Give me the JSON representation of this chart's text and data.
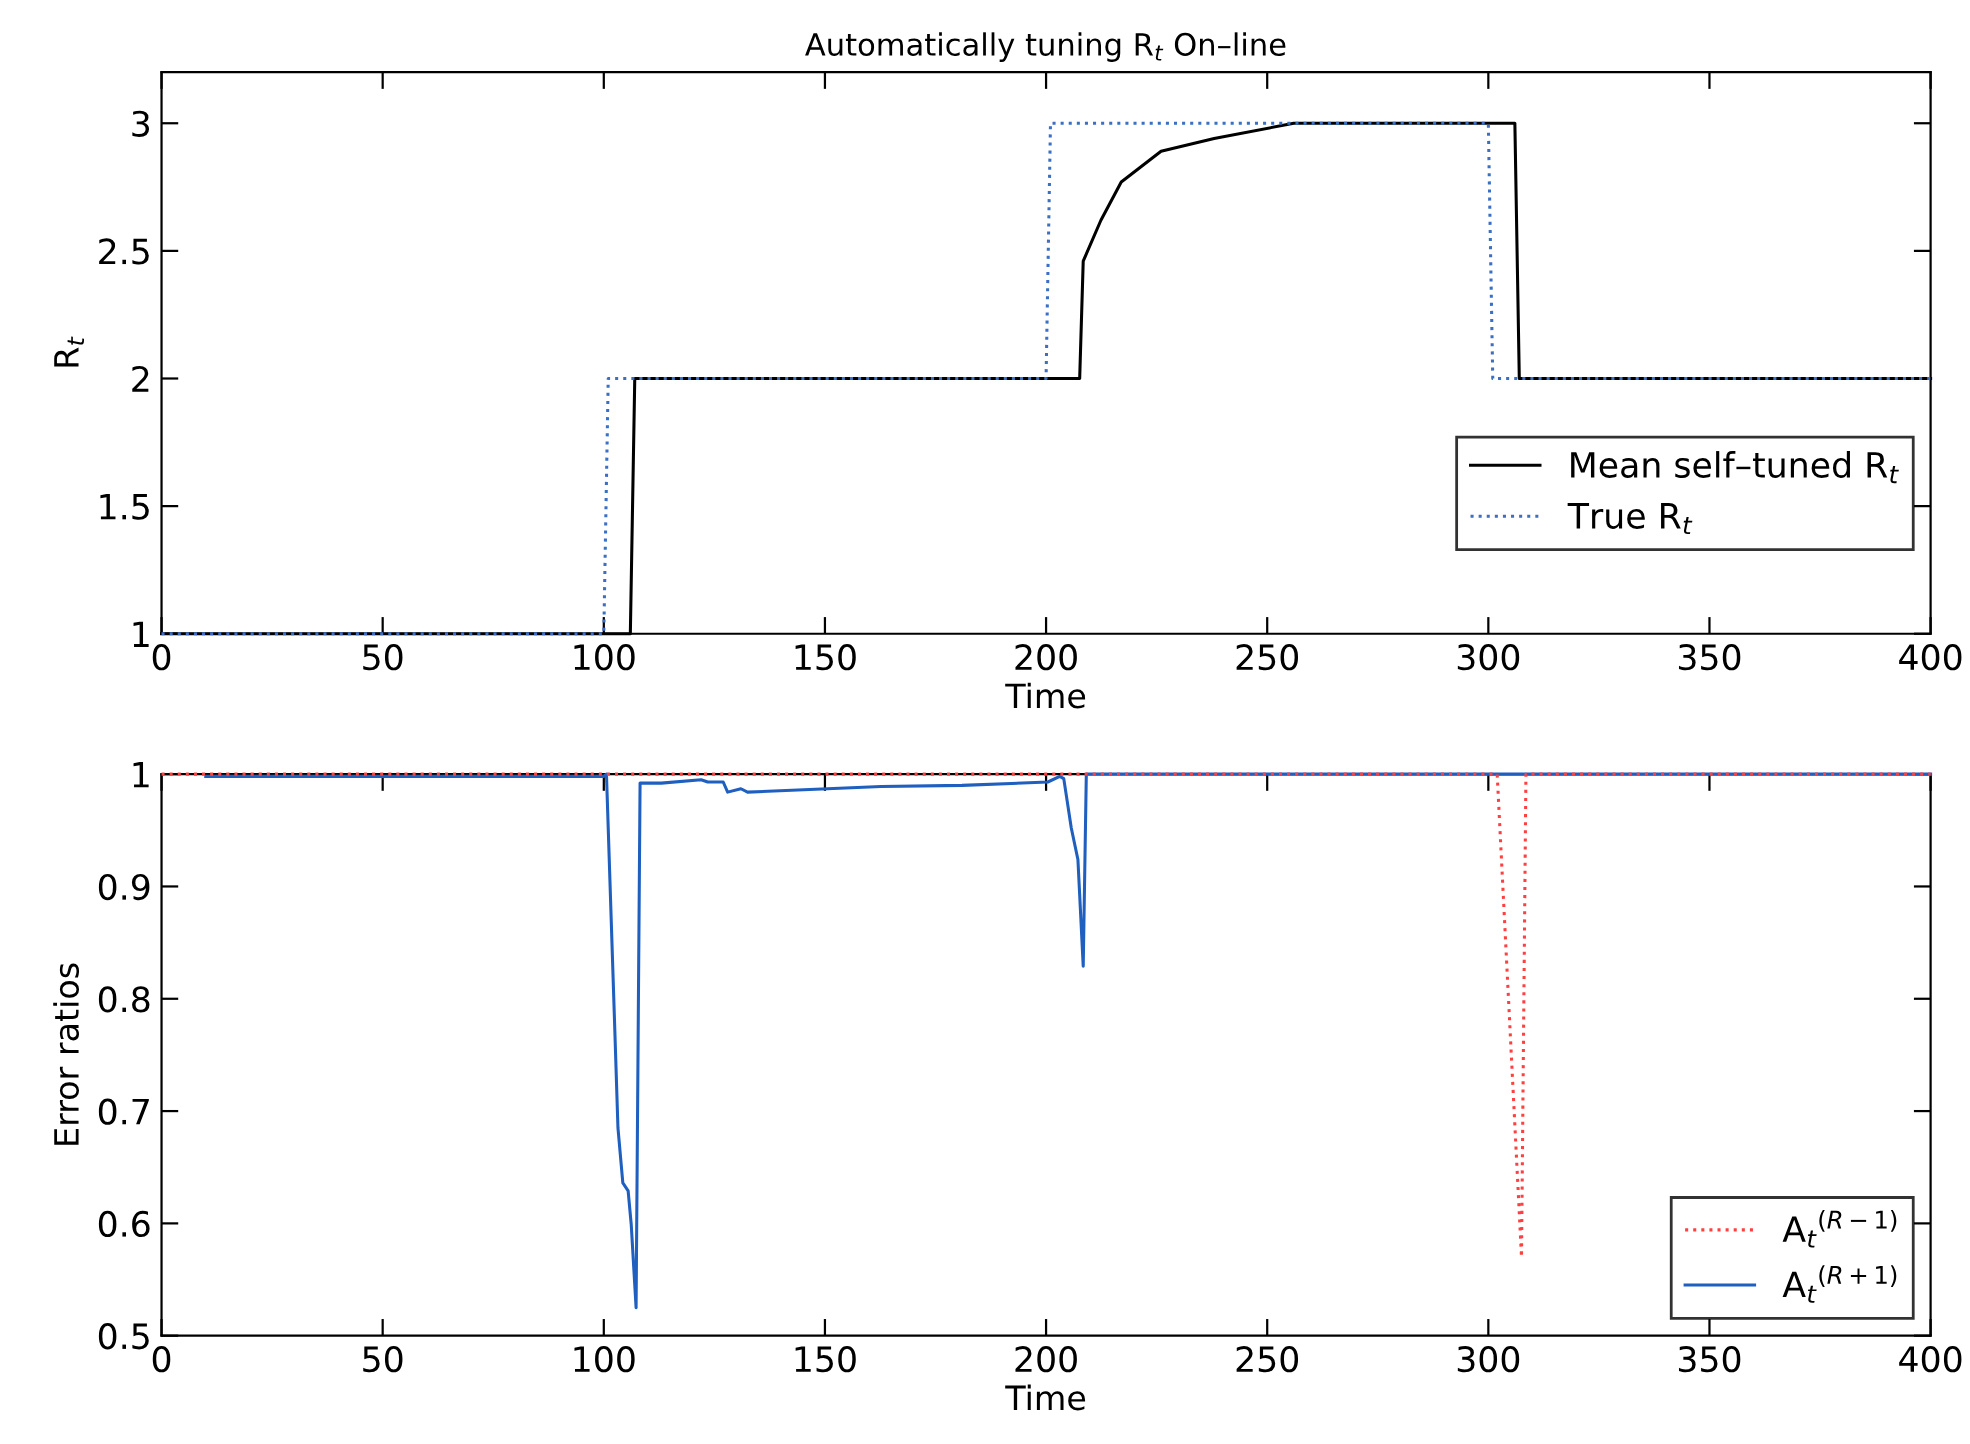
{
  "chart_data": [
    {
      "type": "line",
      "title": "Automatically tuning R$_{t}$ On–line",
      "xlabel": "Time",
      "ylabel": "R$_{t}$",
      "xlim": [
        0,
        400
      ],
      "ylim": [
        1,
        3.2
      ],
      "xticks": [
        0,
        50,
        100,
        150,
        200,
        250,
        300,
        350,
        400
      ],
      "yticks": [
        1,
        1.5,
        2,
        2.5,
        3
      ],
      "grid": false,
      "legend": "right",
      "series": [
        {
          "name": "Mean self–tuned R$_{t}$",
          "color": "#000000",
          "line_style": "solid",
          "x": [
            0,
            106,
            107,
            207.6,
            208.4,
            212.4,
            217,
            226,
            238,
            256,
            306,
            307,
            400
          ],
          "values": [
            1,
            1,
            2,
            2,
            2.46,
            2.62,
            2.77,
            2.89,
            2.94,
            3,
            3,
            2,
            2
          ]
        },
        {
          "name": "True R$_{t}$",
          "color": "#3a6fc4",
          "line_style": "dotted",
          "x": [
            0,
            100,
            101,
            200,
            201,
            300,
            301,
            400
          ],
          "values": [
            1,
            1,
            2,
            2,
            3,
            3,
            2,
            2
          ]
        }
      ]
    },
    {
      "type": "line",
      "xlabel": "Time",
      "ylabel": "Error ratios",
      "xlim": [
        0,
        400
      ],
      "ylim": [
        0.5,
        1
      ],
      "xticks": [
        0,
        50,
        100,
        150,
        200,
        250,
        300,
        350,
        400
      ],
      "yticks": [
        0.5,
        0.6,
        0.7,
        0.8,
        0.9,
        1
      ],
      "grid": false,
      "legend": "lower right",
      "series": [
        {
          "name": "A$_{t}$$^{(R−1)}$",
          "color": "#ff4040",
          "line_style": "dotted",
          "x": [
            0,
            302,
            307.5,
            308.5,
            400
          ],
          "values": [
            1,
            1,
            0.57,
            1,
            1
          ]
        },
        {
          "name": "A$_{t}$$^{(R+1)}$",
          "color": "#1f5fbf",
          "line_style": "solid",
          "x": [
            10,
            100,
            100.6,
            102.4,
            103.2,
            104.3,
            105.5,
            106.2,
            107.3,
            108.2,
            113,
            122,
            123.5,
            127,
            128,
            131,
            132.5,
            162.7,
            181,
            200.4,
            203.1,
            204,
            205.7,
            207.2,
            208.4,
            209.1,
            400
          ],
          "values": [
            0.998,
            0.998,
            1,
            0.783,
            0.685,
            0.636,
            0.629,
            0.599,
            0.525,
            0.992,
            0.992,
            0.995,
            0.993,
            0.993,
            0.984,
            0.987,
            0.984,
            0.989,
            0.99,
            0.993,
            0.998,
            0.996,
            0.952,
            0.924,
            0.829,
            1,
            1
          ]
        }
      ]
    }
  ]
}
